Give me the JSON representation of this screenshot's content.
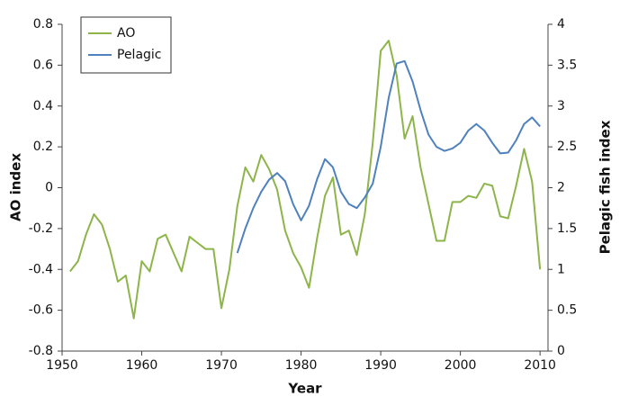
{
  "chart_data": {
    "type": "line",
    "xlabel": "Year",
    "ylabel": "AO index",
    "y2label": "Pelagic fish index",
    "x": [
      1951,
      1952,
      1953,
      1954,
      1955,
      1956,
      1957,
      1958,
      1959,
      1960,
      1961,
      1962,
      1963,
      1964,
      1965,
      1966,
      1967,
      1968,
      1969,
      1970,
      1971,
      1972,
      1973,
      1974,
      1975,
      1976,
      1977,
      1978,
      1979,
      1980,
      1981,
      1982,
      1983,
      1984,
      1985,
      1986,
      1987,
      1988,
      1989,
      1990,
      1991,
      1992,
      1993,
      1994,
      1995,
      1996,
      1997,
      1998,
      1999,
      2000,
      2001,
      2002,
      2003,
      2004,
      2005,
      2006,
      2007,
      2008,
      2009,
      2010
    ],
    "series": [
      {
        "name": "AO",
        "color": "#8db54a",
        "values": [
          -0.41,
          -0.36,
          -0.23,
          -0.13,
          -0.18,
          -0.3,
          -0.46,
          -0.43,
          -0.64,
          -0.36,
          -0.41,
          -0.25,
          -0.23,
          -0.32,
          -0.41,
          -0.24,
          -0.27,
          -0.3,
          -0.3,
          -0.59,
          -0.4,
          -0.09,
          0.1,
          0.03,
          0.16,
          0.09,
          -0.01,
          -0.21,
          -0.32,
          -0.39,
          -0.49,
          -0.25,
          -0.04,
          0.05,
          -0.23,
          -0.21,
          -0.33,
          -0.13,
          0.22,
          0.67,
          0.72,
          0.55,
          0.24,
          0.35,
          0.1,
          -0.08,
          -0.26,
          -0.26,
          -0.07,
          -0.07,
          -0.04,
          -0.05,
          0.02,
          0.01,
          -0.14,
          -0.15,
          0.01,
          0.19,
          0.03,
          -0.4
        ]
      },
      {
        "name": "Pelagic",
        "color": "#4f81bd",
        "axis": "y2",
        "values": [
          null,
          null,
          null,
          null,
          null,
          null,
          null,
          null,
          null,
          null,
          null,
          null,
          null,
          null,
          null,
          null,
          null,
          null,
          null,
          null,
          null,
          1.2,
          1.5,
          1.75,
          1.95,
          2.1,
          2.18,
          2.08,
          1.8,
          1.6,
          1.78,
          2.1,
          2.35,
          2.25,
          1.95,
          1.8,
          1.75,
          1.88,
          2.05,
          2.5,
          3.1,
          3.52,
          3.55,
          3.3,
          2.95,
          2.65,
          2.5,
          2.45,
          2.48,
          2.55,
          2.7,
          2.78,
          2.7,
          2.55,
          2.42,
          2.43,
          2.58,
          2.78,
          2.86,
          2.75
        ]
      }
    ],
    "xlim": [
      1950,
      2011
    ],
    "xticks": [
      1950,
      1960,
      1970,
      1980,
      1990,
      2000,
      2010
    ],
    "ylim": [
      -0.8,
      0.8
    ],
    "yticks": [
      -0.8,
      -0.6,
      -0.4,
      -0.2,
      0,
      0.2,
      0.4,
      0.6,
      0.8
    ],
    "y2lim": [
      0,
      4
    ],
    "y2ticks": [
      0,
      0.5,
      1,
      1.5,
      2,
      2.5,
      3,
      3.5,
      4
    ],
    "legend": "upper-left"
  }
}
